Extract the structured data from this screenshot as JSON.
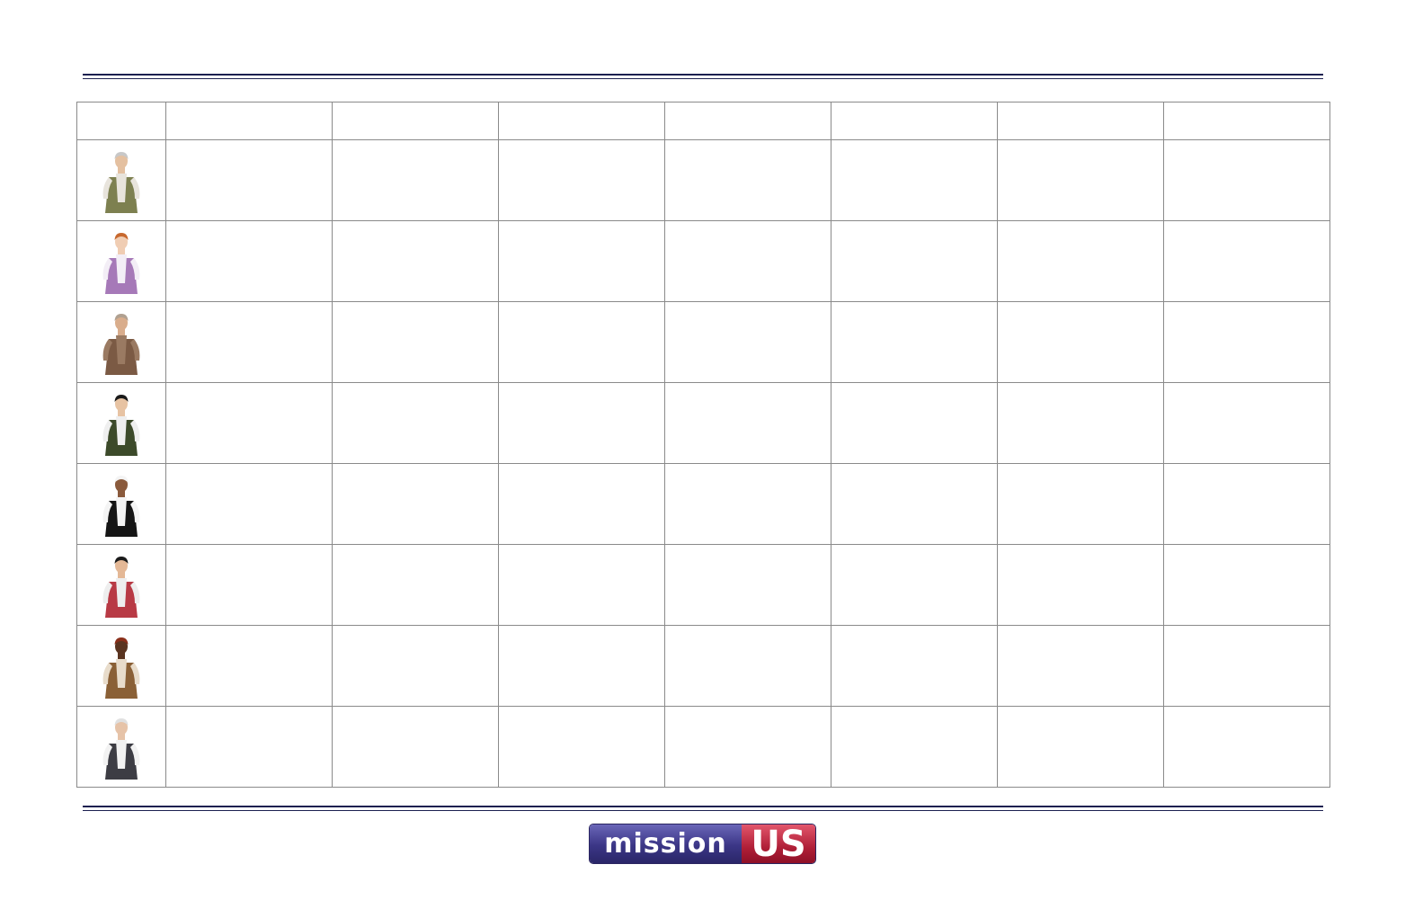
{
  "characters": [
    {
      "icon": "craftsman-apron-icon",
      "colors": {
        "coat": "#7d8050",
        "shirt": "#e8e4dc",
        "skin": "#e4c0a0",
        "hair": "#c8c8c8"
      }
    },
    {
      "icon": "lady-lavender-dress-icon",
      "colors": {
        "coat": "#a679b8",
        "shirt": "#f3eef6",
        "skin": "#f0cdb3",
        "hair": "#c7682e"
      }
    },
    {
      "icon": "elder-brown-coat-icon",
      "colors": {
        "coat": "#7b5a44",
        "shirt": "#9a7a62",
        "skin": "#d9ad8c",
        "hair": "#b0a090"
      }
    },
    {
      "icon": "patriot-tricorn-green-vest-icon",
      "colors": {
        "coat": "#3c4a2a",
        "shirt": "#efefef",
        "skin": "#e7c3a3",
        "hair": "#1a1a1a"
      }
    },
    {
      "icon": "servant-woman-black-dress-icon",
      "colors": {
        "coat": "#151515",
        "shirt": "#f4f4f4",
        "skin": "#8a5a3c",
        "hair": "#f4f4f4"
      }
    },
    {
      "icon": "redcoat-soldier-icon",
      "colors": {
        "coat": "#b83a45",
        "shirt": "#eeeeee",
        "skin": "#e4b896",
        "hair": "#1a1a1a"
      }
    },
    {
      "icon": "laborer-headwrap-icon",
      "colors": {
        "coat": "#8a6036",
        "shirt": "#e8dccb",
        "skin": "#5a3420",
        "hair": "#8a2f1a"
      }
    },
    {
      "icon": "gentleman-grey-coat-icon",
      "colors": {
        "coat": "#3d3d44",
        "shirt": "#f2f2f2",
        "skin": "#e6c3a8",
        "hair": "#e0e0e0"
      }
    }
  ],
  "logo": {
    "left_text": "mission",
    "right_text": "US"
  }
}
